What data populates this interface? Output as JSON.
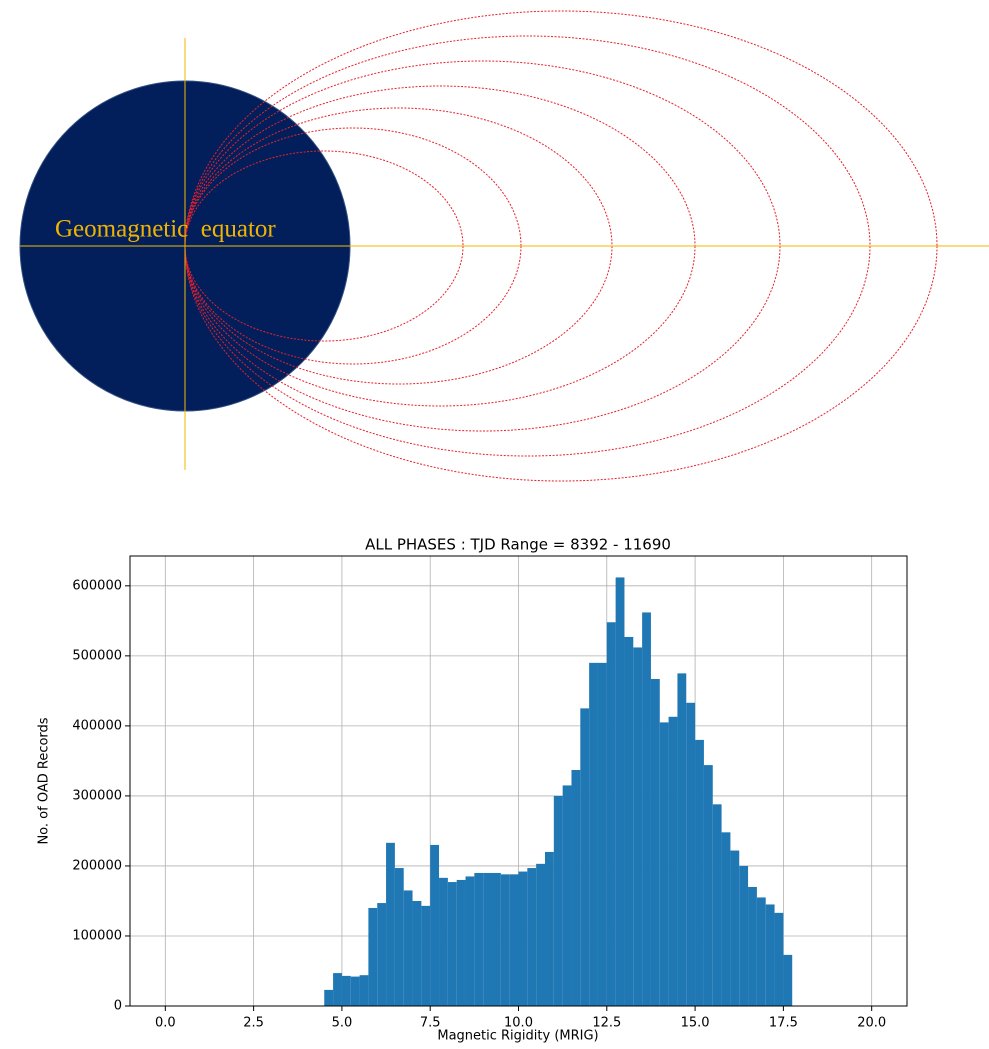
{
  "diagram": {
    "label": "Geomagnetic  equator"
  },
  "chart_data": {
    "type": "histogram",
    "title": "ALL PHASES : TJD Range = 8392 - 11690",
    "xlabel": "Magnetic Rigidity (MRIG)",
    "ylabel": "No. of OAD Records",
    "color": "#1f77b4",
    "grid": true,
    "bins": [
      0,
      0.25,
      0.5,
      0.75,
      1,
      1.25,
      1.5,
      1.75,
      2,
      2.25,
      2.5,
      2.75,
      3,
      3.25,
      3.5,
      3.75,
      4,
      4.25,
      4.5,
      4.75,
      5,
      5.25,
      5.5,
      5.75,
      6,
      6.25,
      6.5,
      6.75,
      7,
      7.25,
      7.5,
      7.75,
      8,
      8.25,
      8.5,
      8.75,
      9,
      9.25,
      9.5,
      9.75,
      10,
      10.25,
      10.5,
      10.75,
      11,
      11.25,
      11.5,
      11.75,
      12,
      12.25,
      12.5,
      12.75,
      13,
      13.25,
      13.5,
      13.75,
      14,
      14.25,
      14.5,
      14.75,
      15,
      15.25,
      15.5,
      15.75,
      16,
      16.25,
      16.5,
      16.75,
      17,
      17.25,
      17.5,
      17.75,
      18,
      18.25,
      18.5,
      18.75,
      19,
      19.25,
      19.5,
      19.75,
      20
    ],
    "values": [
      0,
      0,
      0,
      0,
      0,
      0,
      0,
      0,
      0,
      0,
      0,
      0,
      0,
      0,
      0,
      0,
      0,
      0,
      23000,
      47000,
      43000,
      42000,
      44000,
      140000,
      147000,
      233000,
      197000,
      165000,
      150000,
      143000,
      230000,
      183000,
      177000,
      180000,
      185000,
      190000,
      190000,
      190000,
      188000,
      188000,
      192000,
      197000,
      203000,
      220000,
      300000,
      315000,
      337000,
      425000,
      490000,
      490000,
      548000,
      612000,
      527000,
      512000,
      562000,
      467000,
      405000,
      413000,
      475000,
      433000,
      380000,
      344000,
      288000,
      248000,
      222000,
      200000,
      170000,
      155000,
      145000,
      133000,
      73000,
      0,
      0,
      0,
      0,
      0,
      0,
      0,
      0,
      0
    ],
    "xlim": [
      -1,
      21
    ],
    "ylim": [
      0,
      642600
    ],
    "xticks": [
      {
        "value": 0,
        "label": "0.0"
      },
      {
        "value": 2.5,
        "label": "2.5"
      },
      {
        "value": 5,
        "label": "5.0"
      },
      {
        "value": 7.5,
        "label": "7.5"
      },
      {
        "value": 10,
        "label": "10.0"
      },
      {
        "value": 12.5,
        "label": "12.5"
      },
      {
        "value": 15,
        "label": "15.0"
      },
      {
        "value": 17.5,
        "label": "17.5"
      },
      {
        "value": 20,
        "label": "20.0"
      }
    ],
    "yticks": [
      0,
      100000,
      200000,
      300000,
      400000,
      500000,
      600000
    ]
  }
}
